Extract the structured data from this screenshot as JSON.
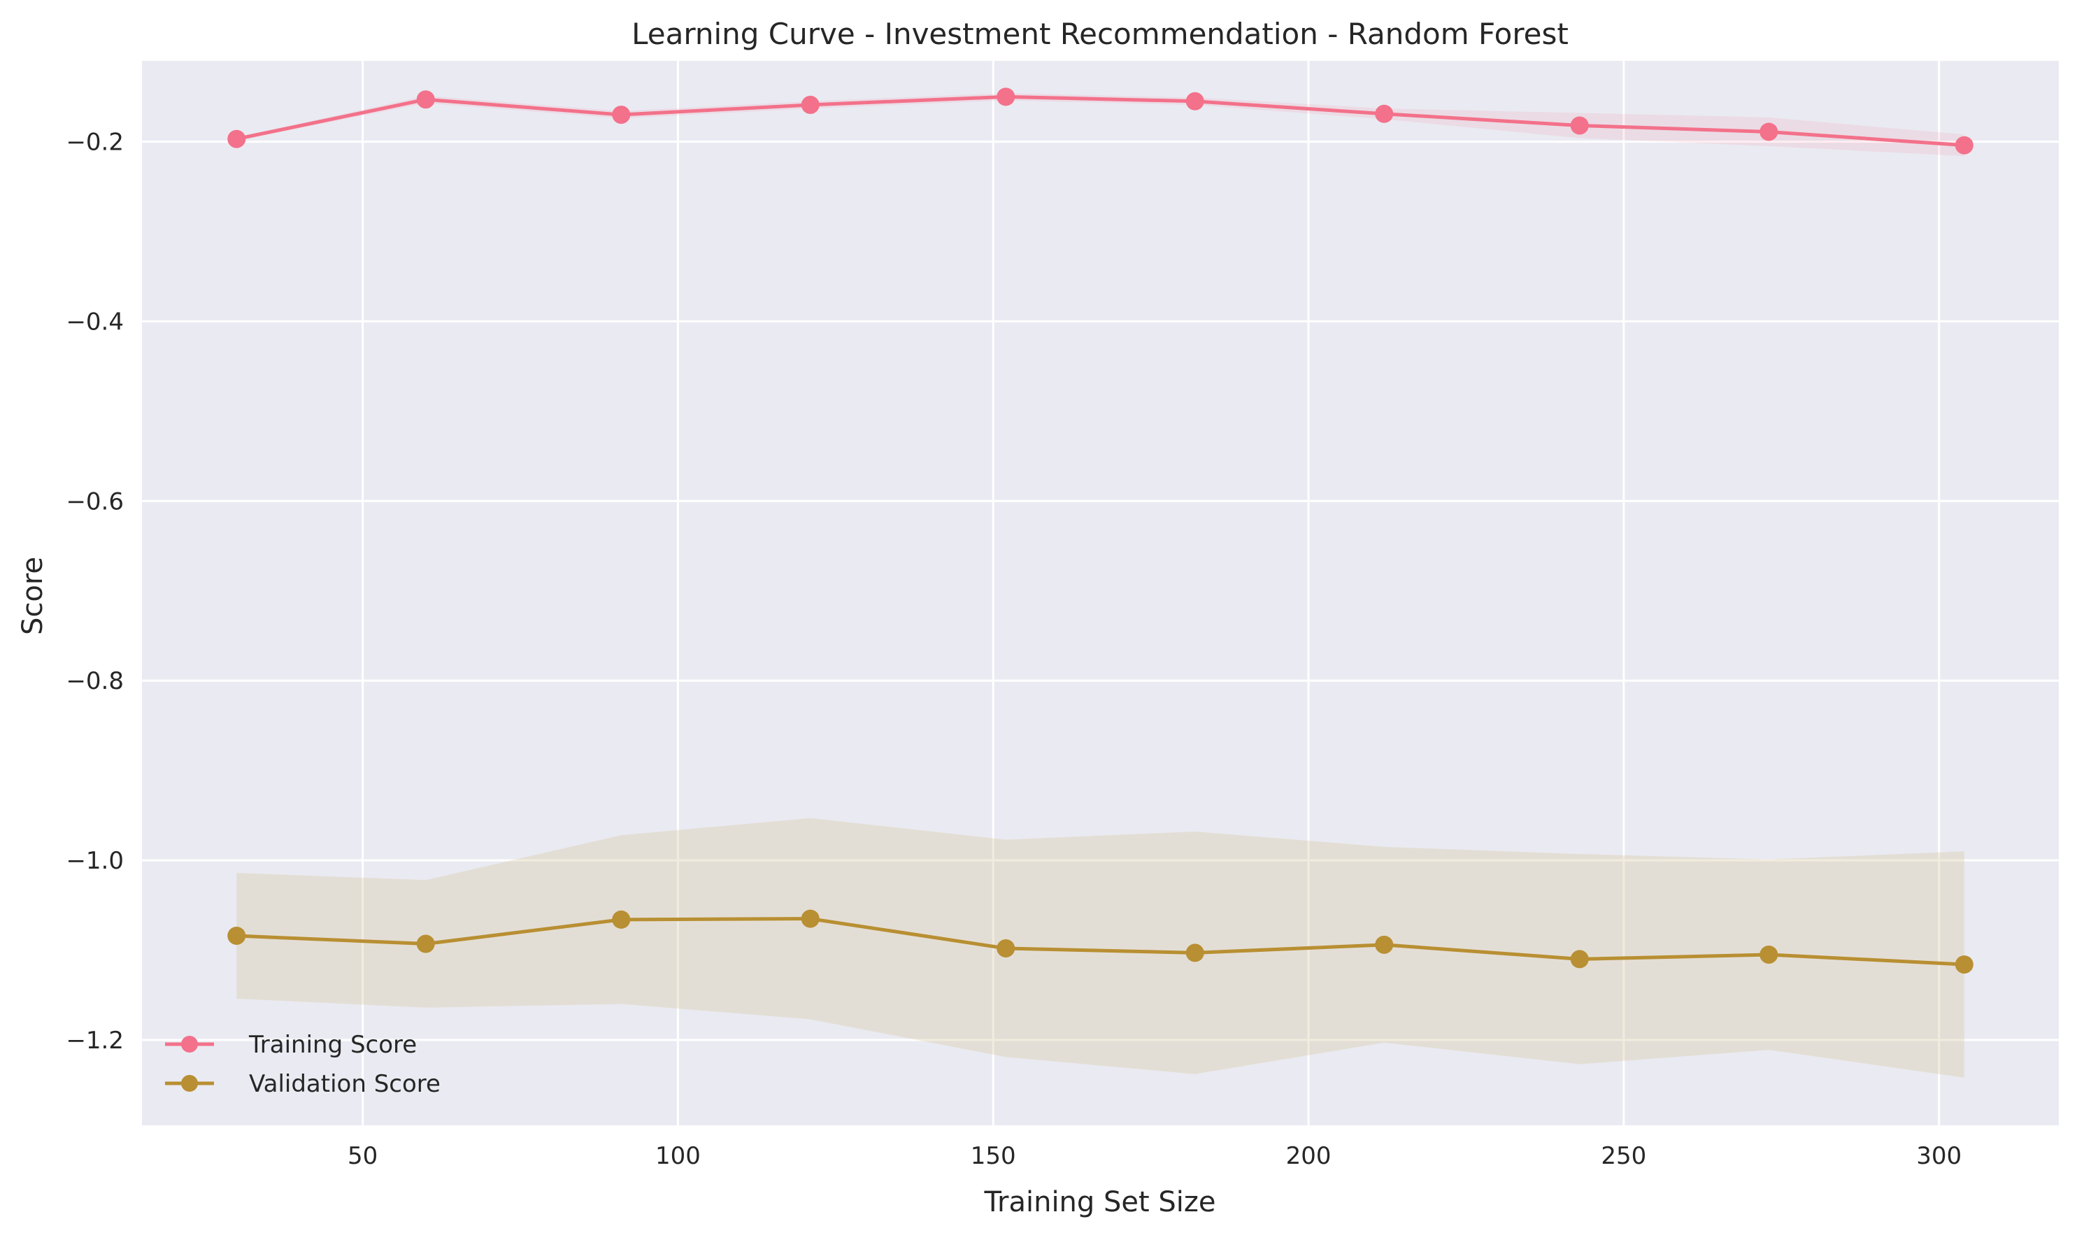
{
  "chart_data": {
    "type": "line",
    "title": "Learning Curve - Investment Recommendation - Random Forest",
    "xlabel": "Training Set Size",
    "ylabel": "Score",
    "xlim": [
      15,
      319
    ],
    "ylim": [
      -1.295,
      -0.11
    ],
    "xticks": [
      50,
      100,
      150,
      200,
      250,
      300
    ],
    "xtick_labels": [
      "50",
      "100",
      "150",
      "200",
      "250",
      "300"
    ],
    "yticks": [
      -0.2,
      -0.4,
      -0.6,
      -0.8,
      -1.0,
      -1.2
    ],
    "ytick_labels": [
      "−0.2",
      "−0.4",
      "−0.6",
      "−0.8",
      "−1.0",
      "−1.2"
    ],
    "grid": true,
    "legend_position": "lower-left",
    "x": [
      30,
      60,
      91,
      121,
      152,
      182,
      212,
      243,
      273,
      304
    ],
    "series": [
      {
        "name": "Training Score",
        "color": "#f3718a",
        "marker": "circle",
        "values": [
          -0.197,
          -0.153,
          -0.17,
          -0.159,
          -0.15,
          -0.155,
          -0.169,
          -0.182,
          -0.189,
          -0.204
        ],
        "band_upper": [
          -0.195,
          -0.149,
          -0.166,
          -0.155,
          -0.146,
          -0.151,
          -0.163,
          -0.168,
          -0.173,
          -0.192
        ],
        "band_lower": [
          -0.199,
          -0.157,
          -0.174,
          -0.163,
          -0.154,
          -0.159,
          -0.175,
          -0.196,
          -0.205,
          -0.216
        ]
      },
      {
        "name": "Validation Score",
        "color": "#b88f32",
        "marker": "circle",
        "values": [
          -1.084,
          -1.093,
          -1.066,
          -1.065,
          -1.098,
          -1.103,
          -1.094,
          -1.11,
          -1.105,
          -1.116
        ],
        "band_upper": [
          -1.014,
          -1.022,
          -0.972,
          -0.953,
          -0.977,
          -0.968,
          -0.985,
          -0.993,
          -0.999,
          -0.99
        ],
        "band_lower": [
          -1.154,
          -1.164,
          -1.16,
          -1.177,
          -1.219,
          -1.238,
          -1.203,
          -1.227,
          -1.211,
          -1.242
        ]
      }
    ]
  }
}
